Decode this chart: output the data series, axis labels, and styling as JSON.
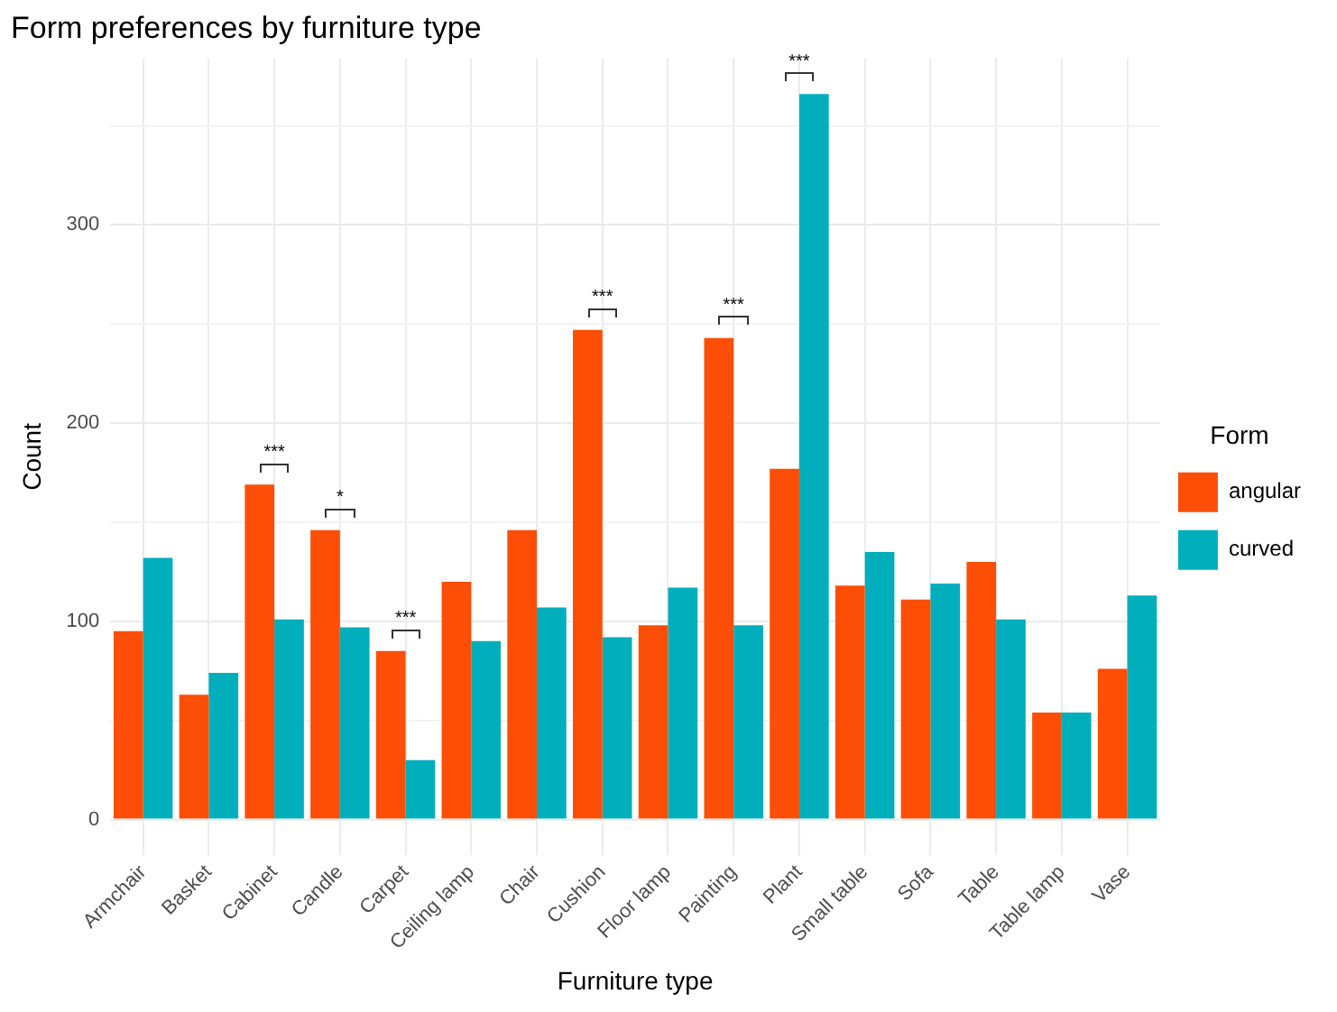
{
  "chart_data": {
    "type": "bar",
    "title": "Form preferences by furniture type",
    "xlabel": "Furniture type",
    "ylabel": "Count",
    "legend_title": "Form",
    "categories": [
      "Armchair",
      "Basket",
      "Cabinet",
      "Candle",
      "Carpet",
      "Ceiling lamp",
      "Chair",
      "Cushion",
      "Floor lamp",
      "Painting",
      "Plant",
      "Small table",
      "Sofa",
      "Table",
      "Table lamp",
      "Vase"
    ],
    "series": [
      {
        "name": "angular",
        "color": "#fc4e07",
        "values": [
          95,
          63,
          169,
          146,
          85,
          120,
          146,
          247,
          98,
          243,
          177,
          118,
          111,
          130,
          54,
          76
        ]
      },
      {
        "name": "curved",
        "color": "#00afbb",
        "values": [
          132,
          74,
          101,
          97,
          30,
          90,
          107,
          92,
          117,
          98,
          366,
          135,
          119,
          101,
          54,
          113
        ]
      }
    ],
    "ylim": [
      -18,
      384
    ],
    "yticks": [
      0,
      {
        "value": 50,
        "label": null
      },
      100,
      {
        "value": 150,
        "label": null
      },
      200,
      {
        "value": 250,
        "label": null
      },
      300,
      {
        "value": 350,
        "label": null
      }
    ],
    "grid": true,
    "legend": "right",
    "annotations": [
      {
        "text": "***",
        "x": "Cabinet",
        "y": 169
      },
      {
        "text": "*",
        "x": "Candle",
        "y": 146
      },
      {
        "text": "***",
        "x": "Carpet",
        "y": 85
      },
      {
        "text": "***",
        "x": "Cushion",
        "y": 247
      },
      {
        "text": "***",
        "x": "Painting",
        "y": 243
      },
      {
        "text": "***",
        "x": "Plant",
        "y": 366
      }
    ]
  }
}
